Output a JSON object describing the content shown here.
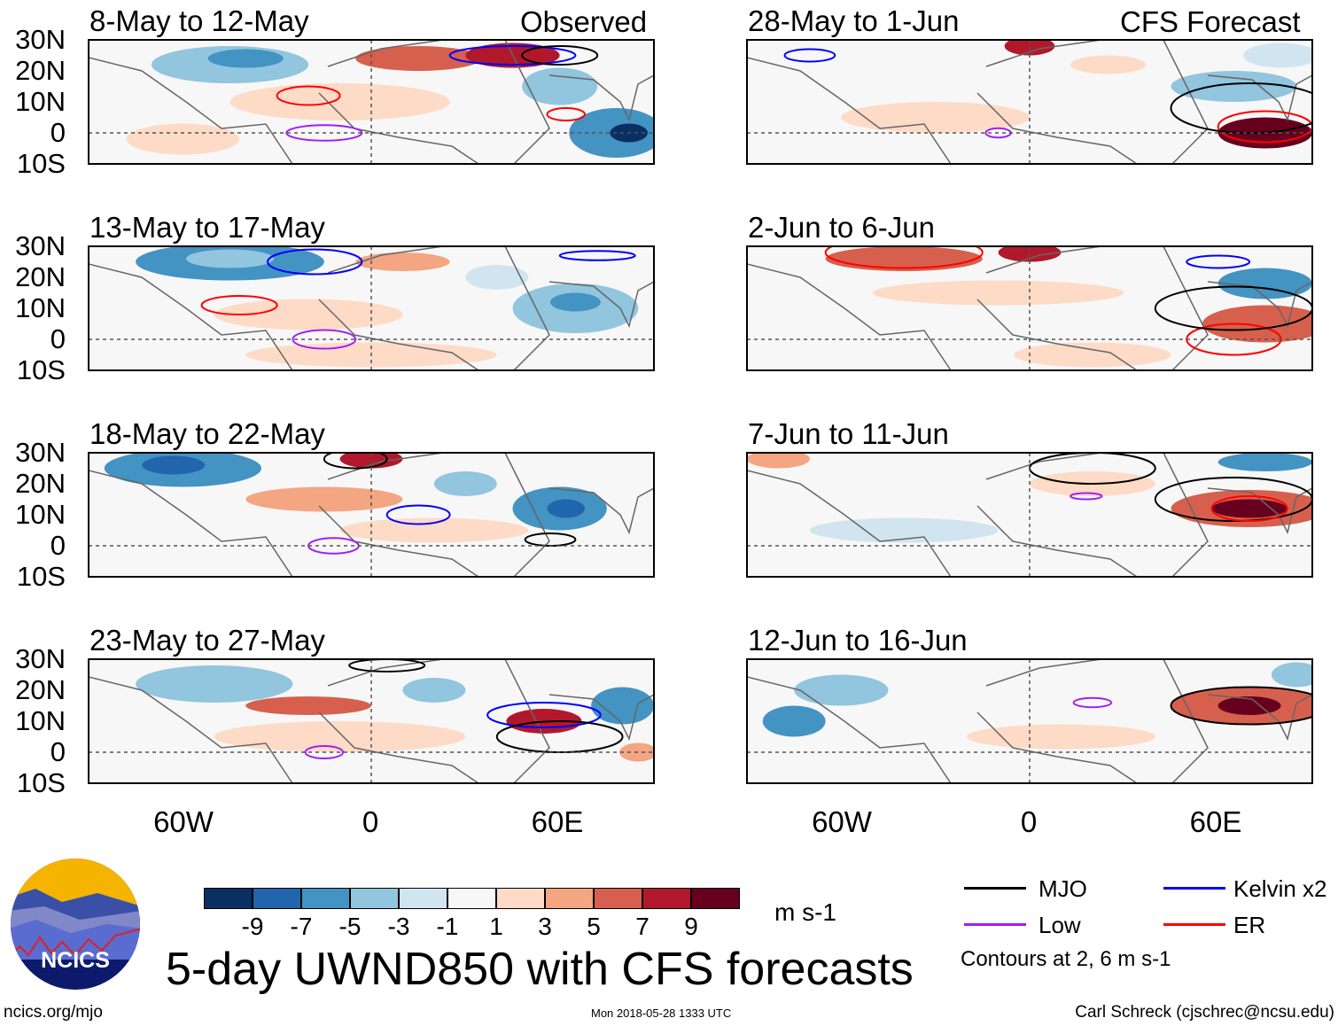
{
  "title": "5-day UWND850 with CFS forecasts",
  "columns": {
    "observed_label": "Observed",
    "forecast_label": "CFS Forecast"
  },
  "units": "m s-1",
  "footer": {
    "left": "ncics.org/mjo",
    "center": "Mon 2018-05-28 1333 UTC",
    "right": "Carl Schreck (cjschrec@ncsu.edu)"
  },
  "logo": {
    "text": "NCICS"
  },
  "legend": {
    "items": [
      {
        "label": "MJO",
        "color": "#000000"
      },
      {
        "label": "Kelvin x2",
        "color": "#0000ff"
      },
      {
        "label": "Low",
        "color": "#a020f0"
      },
      {
        "label": "ER",
        "color": "#ff0000"
      }
    ],
    "note": "Contours at 2, 6 m s-1"
  },
  "chart_data": {
    "type": "heatmap",
    "variable": "850-hPa zonal wind anomaly",
    "lat_ticks": [
      "30N",
      "20N",
      "10N",
      "0",
      "10S"
    ],
    "lon_ticks": [
      "60W",
      "0",
      "60E"
    ],
    "lat_range": [
      -10,
      30
    ],
    "lon_range": [
      -90,
      90
    ],
    "colorbar": {
      "levels": [
        "-9",
        "-7",
        "-5",
        "-3",
        "-1",
        "1",
        "3",
        "5",
        "7",
        "9"
      ],
      "colors": [
        "#0a2f63",
        "#2166ac",
        "#4393c3",
        "#92c5de",
        "#d1e5f0",
        "#f7f7f7",
        "#fddbc7",
        "#f4a582",
        "#d6604d",
        "#b2182b",
        "#67001f"
      ]
    },
    "panels": [
      {
        "title": "8-May to 12-May",
        "kind": "observed"
      },
      {
        "title": "13-May to 17-May",
        "kind": "observed"
      },
      {
        "title": "18-May to 22-May",
        "kind": "observed"
      },
      {
        "title": "23-May to 27-May",
        "kind": "observed"
      },
      {
        "title": "28-May to 1-Jun",
        "kind": "forecast"
      },
      {
        "title": "2-Jun to 6-Jun",
        "kind": "forecast"
      },
      {
        "title": "7-Jun to 11-Jun",
        "kind": "forecast"
      },
      {
        "title": "12-Jun to 16-Jun",
        "kind": "forecast"
      }
    ]
  }
}
